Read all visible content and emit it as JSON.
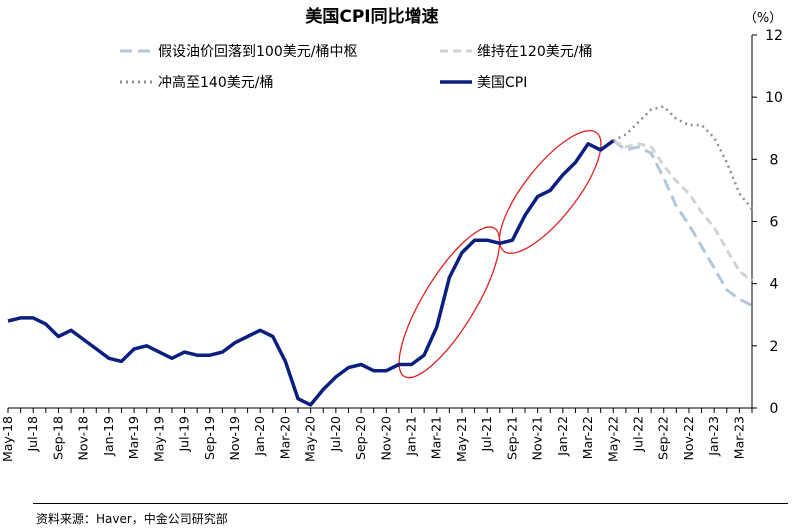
{
  "chart_data": {
    "type": "line",
    "title": "美国CPI同比增速",
    "unit_label": "（%）",
    "source": "资料来源：Haver，中金公司研究部",
    "ylim": [
      0,
      12
    ],
    "yticks": [
      "0",
      "2",
      "4",
      "6",
      "8",
      "10",
      "12"
    ],
    "grid": false,
    "legend_position": "top",
    "months": [
      "May-18",
      "Jun-18",
      "Jul-18",
      "Aug-18",
      "Sep-18",
      "Oct-18",
      "Nov-18",
      "Dec-18",
      "Jan-19",
      "Feb-19",
      "Mar-19",
      "Apr-19",
      "May-19",
      "Jun-19",
      "Jul-19",
      "Aug-19",
      "Sep-19",
      "Oct-19",
      "Nov-19",
      "Dec-19",
      "Jan-20",
      "Feb-20",
      "Mar-20",
      "Apr-20",
      "May-20",
      "Jun-20",
      "Jul-20",
      "Aug-20",
      "Sep-20",
      "Oct-20",
      "Nov-20",
      "Dec-20",
      "Jan-21",
      "Feb-21",
      "Mar-21",
      "Apr-21",
      "May-21",
      "Jun-21",
      "Jul-21",
      "Aug-21",
      "Sep-21",
      "Oct-21",
      "Nov-21",
      "Dec-21",
      "Jan-22",
      "Feb-22",
      "Mar-22",
      "Apr-22",
      "May-22",
      "Jun-22",
      "Jul-22",
      "Aug-22",
      "Sep-22",
      "Oct-22",
      "Nov-22",
      "Dec-22",
      "Jan-23",
      "Feb-23",
      "Mar-23",
      "Apr-23"
    ],
    "xtick_labels": [
      "May-18",
      "Jul-18",
      "Sep-18",
      "Nov-18",
      "Jan-19",
      "Mar-19",
      "May-19",
      "Jul-19",
      "Sep-19",
      "Nov-19",
      "Jan-20",
      "Mar-20",
      "May-20",
      "Jul-20",
      "Sep-20",
      "Nov-20",
      "Jan-21",
      "Mar-21",
      "May-21",
      "Jul-21",
      "Sep-21",
      "Nov-21",
      "Jan-22",
      "Mar-22",
      "May-22",
      "Jul-22",
      "Sep-22",
      "Nov-22",
      "Jan-23",
      "Mar-23"
    ],
    "series": [
      {
        "name": "美国CPI",
        "style": "solid",
        "color": "#0b1f80",
        "start_index": 0,
        "values": [
          2.8,
          2.9,
          2.9,
          2.7,
          2.3,
          2.5,
          2.2,
          1.9,
          1.6,
          1.5,
          1.9,
          2.0,
          1.8,
          1.6,
          1.8,
          1.7,
          1.7,
          1.8,
          2.1,
          2.3,
          2.5,
          2.3,
          1.5,
          0.3,
          0.1,
          0.6,
          1.0,
          1.3,
          1.4,
          1.2,
          1.2,
          1.4,
          1.4,
          1.7,
          2.6,
          4.2,
          5.0,
          5.4,
          5.4,
          5.3,
          5.4,
          6.2,
          6.8,
          7.0,
          7.5,
          7.9,
          8.5,
          8.3,
          8.6
        ]
      },
      {
        "name": "假设油价回落到100美元/桶中枢",
        "style": "long-dash",
        "color": "#b4c6dc",
        "start_index": 48,
        "values": [
          8.6,
          8.3,
          8.4,
          8.2,
          7.4,
          6.5,
          5.9,
          5.2,
          4.5,
          3.8,
          3.5,
          3.3
        ]
      },
      {
        "name": "维持在120美元/桶",
        "style": "dash",
        "color": "#d3d3d3",
        "start_index": 48,
        "values": [
          8.6,
          8.4,
          8.5,
          8.4,
          7.8,
          7.3,
          6.9,
          6.3,
          5.8,
          5.1,
          4.4,
          4.1
        ]
      },
      {
        "name": "冲高至140美元/桶",
        "style": "dot",
        "color": "#8c8c8c",
        "start_index": 48,
        "values": [
          8.6,
          8.8,
          9.2,
          9.6,
          9.7,
          9.3,
          9.1,
          9.1,
          8.7,
          7.9,
          6.9,
          6.4
        ]
      }
    ],
    "highlight_ellipses": [
      {
        "from_month": "Jan-21",
        "to_month": "Jul-21",
        "color": "#e02020"
      },
      {
        "from_month": "Sep-21",
        "to_month": "Mar-22",
        "color": "#e02020"
      }
    ]
  }
}
